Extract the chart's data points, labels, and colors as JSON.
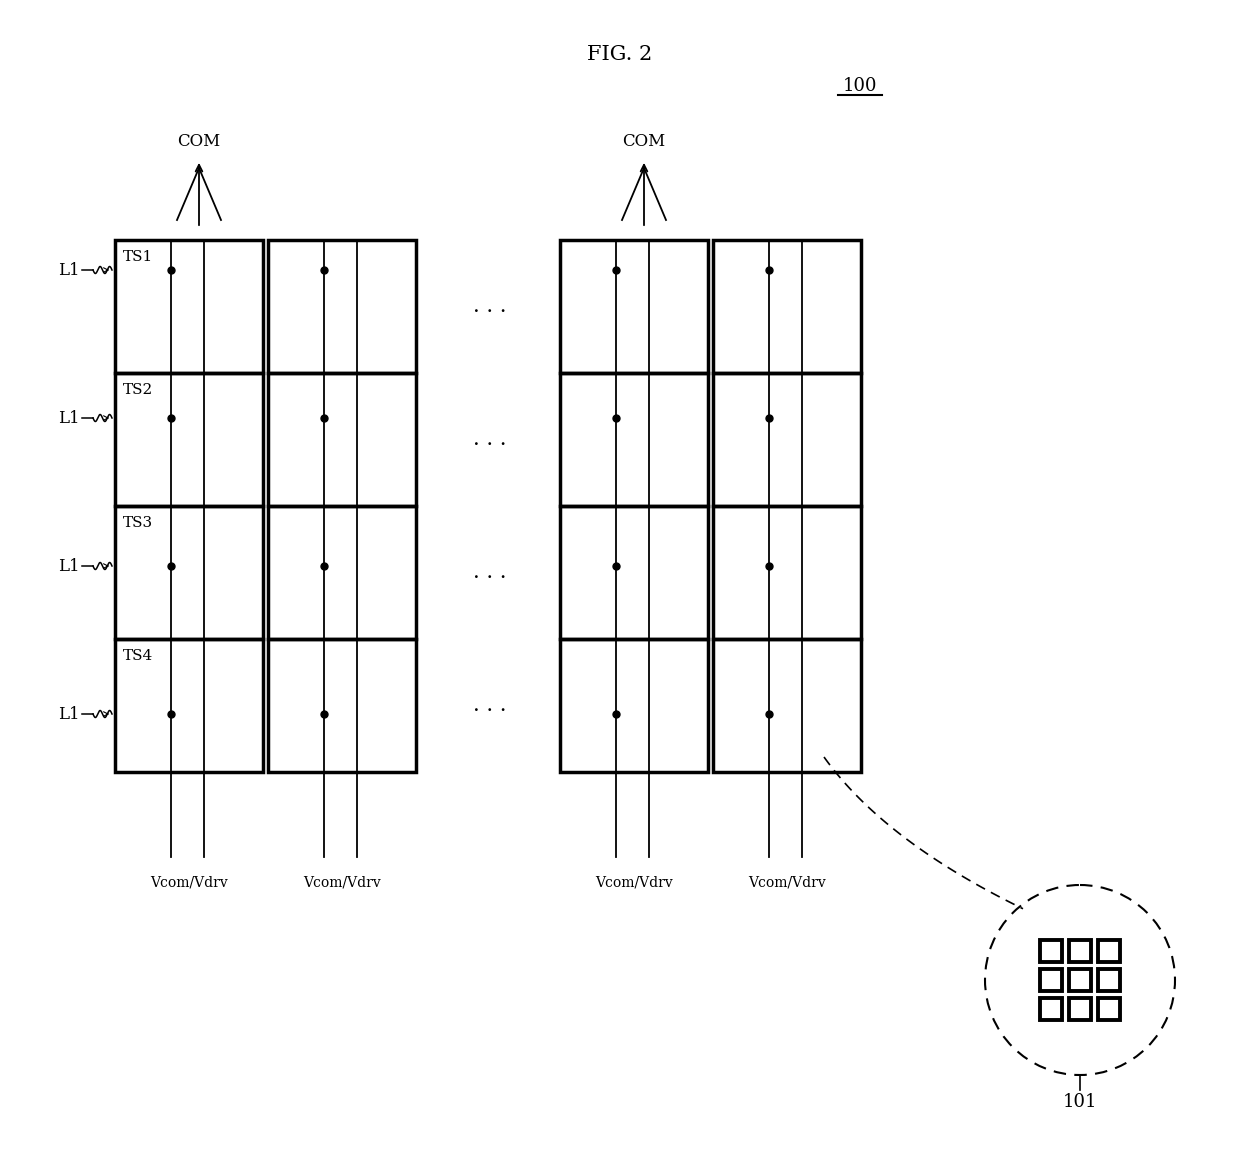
{
  "fig_title": "FIG. 2",
  "label_100": "100",
  "label_101": "101",
  "background_color": "#ffffff",
  "line_color": "#000000",
  "font_size_title": 15,
  "font_size_label": 12,
  "font_size_ts": 11,
  "font_size_vcom": 10,
  "font_size_ref": 13,
  "row_labels": [
    "TS1",
    "TS2",
    "TS3",
    "TS4"
  ],
  "l1_label": "L1",
  "com_label": "COM",
  "vcom_label": "Vcom/Vdrv",
  "lw_thick": 2.5,
  "lw_thin": 1.3,
  "lw_vline": 1.3
}
